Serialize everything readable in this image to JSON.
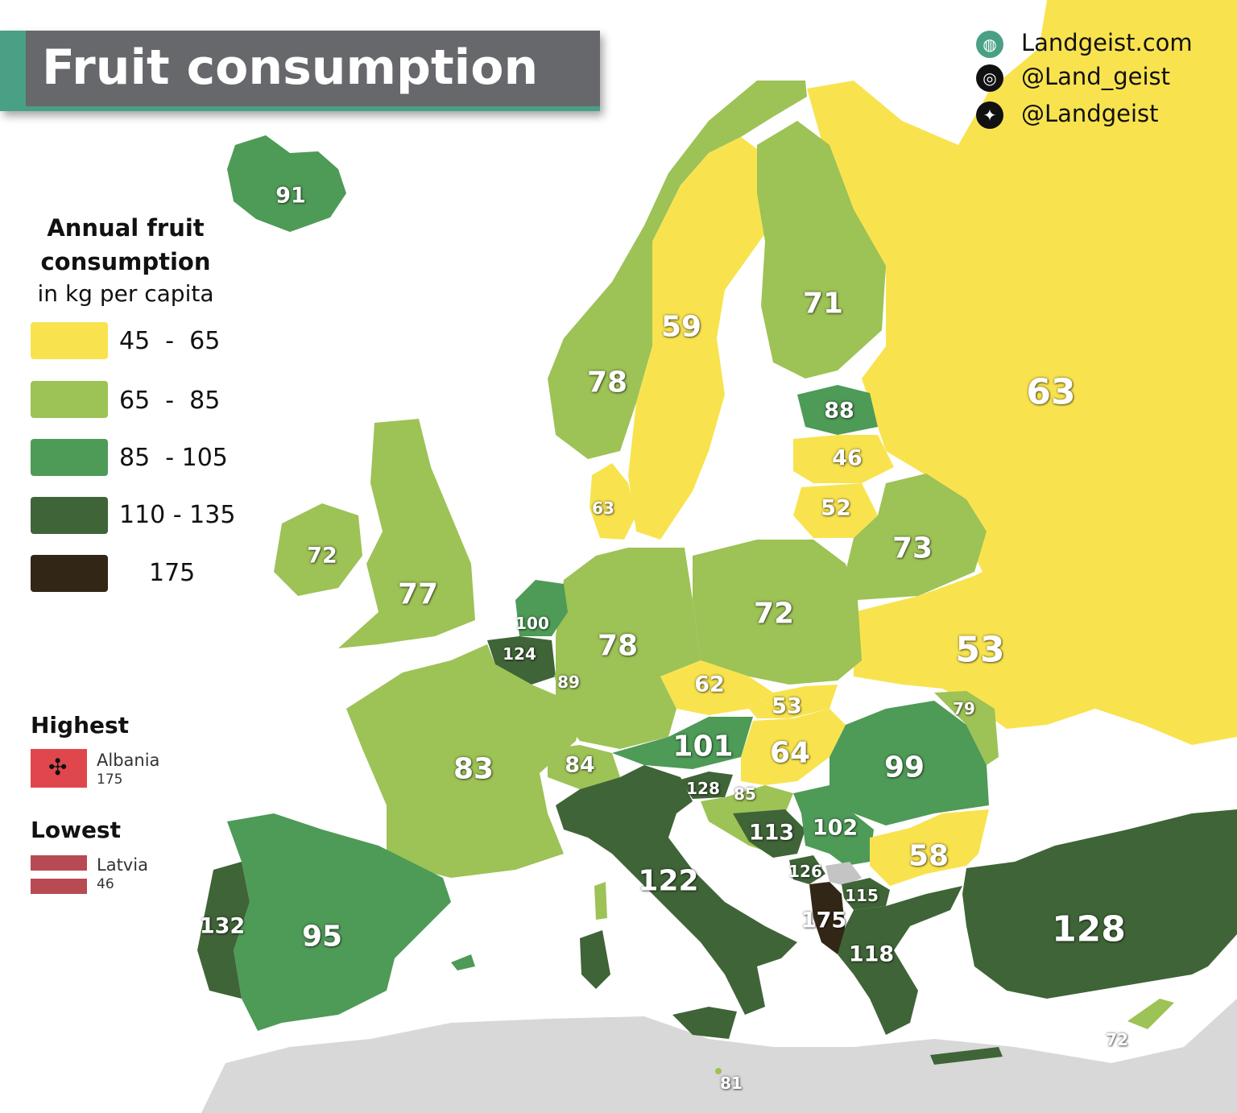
{
  "title": "Fruit consumption",
  "colors": {
    "c1": "#f8e34f",
    "c2": "#9dc256",
    "c3": "#4e9a57",
    "c4": "#3f6437",
    "c5": "#322716",
    "sea": "#ffffff",
    "nodata": "#c4c4c4",
    "accent": "#4aa085"
  },
  "social": [
    {
      "icon": "globe-icon",
      "glyph": "◍",
      "text": "Landgeist.com"
    },
    {
      "icon": "instagram-icon",
      "glyph": "◎",
      "text": "@Land_geist"
    },
    {
      "icon": "twitter-icon",
      "glyph": "✦",
      "text": "@Landgeist"
    }
  ],
  "legend": {
    "title": "Annual fruit consumption",
    "subtitle": "in kg per capita",
    "bins": [
      {
        "label": "45  -  65",
        "color": "#f8e34f"
      },
      {
        "label": "65  -  85",
        "color": "#9dc256"
      },
      {
        "label": "85  - 105",
        "color": "#4e9a57"
      },
      {
        "label": "110 - 135",
        "color": "#3f6437"
      },
      {
        "label": "175",
        "color": "#322716"
      }
    ]
  },
  "highest": {
    "heading": "Highest",
    "country": "Albania",
    "value": "175"
  },
  "lowest": {
    "heading": "Lowest",
    "country": "Latvia",
    "value": "46"
  },
  "countries": [
    {
      "id": "iceland",
      "value": "91"
    },
    {
      "id": "norway",
      "value": "78"
    },
    {
      "id": "sweden",
      "value": "59"
    },
    {
      "id": "finland",
      "value": "71"
    },
    {
      "id": "russia",
      "value": "63"
    },
    {
      "id": "estonia",
      "value": "88"
    },
    {
      "id": "latvia",
      "value": "46"
    },
    {
      "id": "lithuania",
      "value": "52"
    },
    {
      "id": "denmark",
      "value": "63"
    },
    {
      "id": "ireland",
      "value": "72"
    },
    {
      "id": "uk",
      "value": "77"
    },
    {
      "id": "netherlands",
      "value": "100"
    },
    {
      "id": "belgium",
      "value": "124"
    },
    {
      "id": "luxembourg",
      "value": "89"
    },
    {
      "id": "germany",
      "value": "78"
    },
    {
      "id": "poland",
      "value": "72"
    },
    {
      "id": "belarus",
      "value": "73"
    },
    {
      "id": "ukraine",
      "value": "53"
    },
    {
      "id": "czechia",
      "value": "62"
    },
    {
      "id": "slovakia",
      "value": "53"
    },
    {
      "id": "moldova",
      "value": "79"
    },
    {
      "id": "france",
      "value": "83"
    },
    {
      "id": "switzerland",
      "value": "84"
    },
    {
      "id": "austria",
      "value": "101"
    },
    {
      "id": "hungary",
      "value": "64"
    },
    {
      "id": "romania",
      "value": "99"
    },
    {
      "id": "slovenia",
      "value": "128"
    },
    {
      "id": "croatia",
      "value": "85"
    },
    {
      "id": "bosnia",
      "value": "113"
    },
    {
      "id": "serbia",
      "value": "102"
    },
    {
      "id": "montenegro",
      "value": "126"
    },
    {
      "id": "bulgaria",
      "value": "58"
    },
    {
      "id": "north-macedonia",
      "value": "115"
    },
    {
      "id": "albania",
      "value": "175"
    },
    {
      "id": "greece",
      "value": "118"
    },
    {
      "id": "turkey",
      "value": "128"
    },
    {
      "id": "italy",
      "value": "122"
    },
    {
      "id": "portugal",
      "value": "132"
    },
    {
      "id": "spain",
      "value": "95"
    },
    {
      "id": "cyprus",
      "value": "72"
    },
    {
      "id": "malta",
      "value": "81"
    }
  ]
}
